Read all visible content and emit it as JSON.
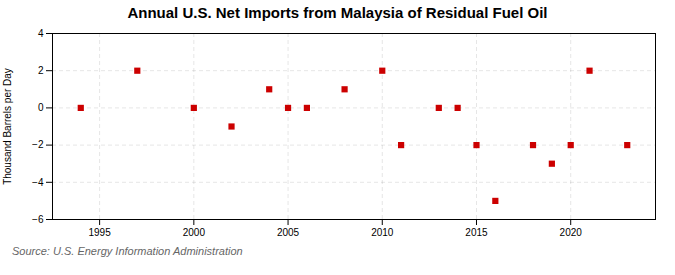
{
  "chart_data": {
    "type": "scatter",
    "title": "Annual U.S. Net Imports from Malaysia of Residual Fuel Oil",
    "ylabel": "Thousand Barrels per Day",
    "source": "Source: U.S. Energy Information Administration",
    "x": [
      1994,
      1997,
      2000,
      2002,
      2004,
      2005,
      2006,
      2008,
      2010,
      2011,
      2013,
      2014,
      2015,
      2016,
      2018,
      2019,
      2020,
      2021,
      2023
    ],
    "values": [
      0,
      2,
      0,
      -1,
      1,
      0,
      0,
      1,
      2,
      -2,
      0,
      0,
      -2,
      -5,
      -2,
      -3,
      -2,
      2,
      -2
    ],
    "color": "#cc0000",
    "marker": "square",
    "xlim": [
      1992.5,
      2024.5
    ],
    "ylim": [
      -6,
      4
    ],
    "xticks": [
      1995,
      2000,
      2005,
      2010,
      2015,
      2020
    ],
    "yticks": [
      -6,
      -4,
      -2,
      0,
      2,
      4
    ],
    "grid": true
  }
}
